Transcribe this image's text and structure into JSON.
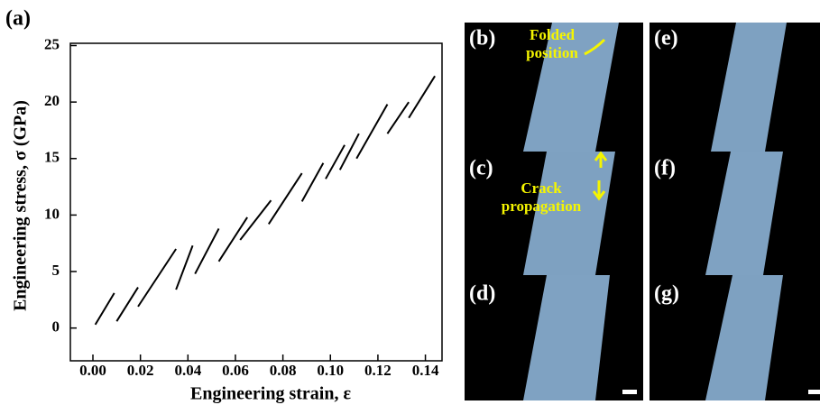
{
  "chart_data": {
    "type": "line",
    "panel_label": "(a)",
    "x_label": "Engineering strain, ε",
    "y_label": "Engineering stress, σ (GPa)",
    "xlim": [
      -0.0095,
      0.147
    ],
    "ylim": [
      -2.9,
      25.2
    ],
    "xticks": [
      {
        "value": 0,
        "label": "0.00"
      },
      0.02,
      0.04,
      0.06,
      0.08,
      {
        "value": 0.1,
        "label": "0.10"
      },
      0.12,
      0.14
    ],
    "yticks": [
      0,
      5,
      10,
      15,
      20,
      25
    ],
    "x": [
      0.001,
      0.009,
      null,
      0.01,
      0.019,
      null,
      0.019,
      0.035,
      null,
      0.035,
      0.042,
      null,
      0.043,
      0.053,
      null,
      0.053,
      0.065,
      null,
      0.062,
      0.075,
      null,
      0.074,
      0.088,
      null,
      0.088,
      0.097,
      null,
      0.098,
      0.106,
      null,
      0.104,
      0.112,
      null,
      0.111,
      0.124,
      null,
      0.124,
      0.133,
      null,
      0.133,
      0.144
    ],
    "series": [
      {
        "color": "#000000",
        "values": [
          0.3,
          3.1,
          null,
          0.6,
          3.6,
          null,
          1.9,
          7.0,
          null,
          3.4,
          7.3,
          null,
          4.8,
          8.8,
          null,
          5.9,
          9.8,
          null,
          7.8,
          11.3,
          null,
          9.2,
          13.7,
          null,
          11.2,
          14.6,
          null,
          13.2,
          16.2,
          null,
          14.0,
          17.2,
          null,
          15.0,
          19.8,
          null,
          17.2,
          20.0,
          null,
          18.6,
          22.3
        ]
      }
    ]
  },
  "images": {
    "panels": [
      {
        "label": "(b)",
        "annotation": [
          "Folded",
          "position"
        ]
      },
      {
        "label": "(c)",
        "annotation": [
          "Crack",
          "propagation"
        ]
      },
      {
        "label": "(d)"
      },
      {
        "label": "(e)"
      },
      {
        "label": "(f)"
      },
      {
        "label": "(g)"
      }
    ]
  }
}
